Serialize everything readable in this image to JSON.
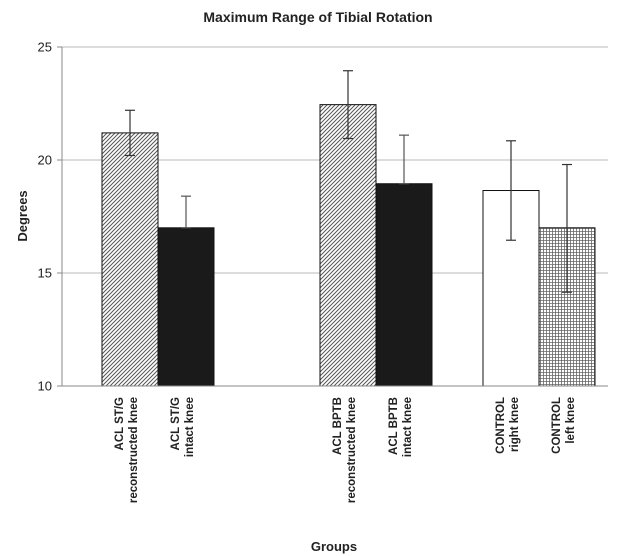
{
  "chart_data": {
    "type": "bar",
    "title": "Maximum Range of Tibial Rotation",
    "xlabel": "Groups",
    "ylabel": "Degrees",
    "ylim": [
      10,
      25
    ],
    "yticks": [
      10,
      15,
      20,
      25
    ],
    "grid": true,
    "categories": [
      [
        "ACL ST/G",
        "reconstructed knee"
      ],
      [
        "ACL ST/G",
        "intact knee"
      ],
      [
        "ACL BPTB",
        "reconstructed knee"
      ],
      [
        "ACL BPTB",
        "intact knee"
      ],
      [
        "CONTROL",
        "right knee"
      ],
      [
        "CONTROL",
        "left knee"
      ]
    ],
    "values": [
      21.2,
      17.0,
      22.45,
      18.95,
      18.65,
      17.0
    ],
    "error": [
      [
        20.2,
        22.2
      ],
      [
        17.0,
        18.4
      ],
      [
        20.95,
        23.95
      ],
      [
        18.95,
        21.1
      ],
      [
        16.45,
        20.85
      ],
      [
        14.15,
        19.8
      ]
    ],
    "fills": [
      "diag-light",
      "solid-black",
      "diag-light",
      "solid-black",
      "white",
      "crosshatch"
    ],
    "colors": {
      "black": "#1a1a1a",
      "grid": "#b8b8b8",
      "axis": "#888888"
    }
  }
}
